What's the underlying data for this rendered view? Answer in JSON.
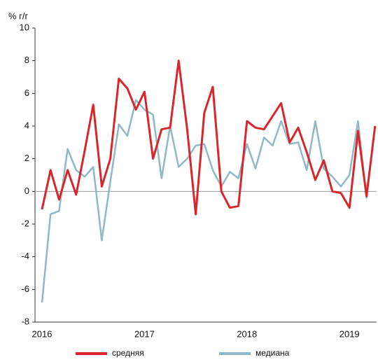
{
  "chart_data": {
    "type": "line",
    "ylabel": "% г/г",
    "categories": [
      "2016",
      null,
      null,
      null,
      null,
      null,
      null,
      null,
      null,
      null,
      null,
      null,
      "2017",
      null,
      null,
      null,
      null,
      null,
      null,
      null,
      null,
      null,
      null,
      null,
      "2018",
      null,
      null,
      null,
      null,
      null,
      null,
      null,
      null,
      null,
      null,
      null,
      "2019",
      null,
      null,
      null
    ],
    "series": [
      {
        "name": "средняя",
        "color": "#d9262b",
        "values": [
          -1.1,
          1.3,
          -0.5,
          1.3,
          -0.2,
          2.5,
          5.3,
          0.3,
          2.0,
          6.9,
          6.3,
          5.0,
          6.1,
          2.0,
          3.8,
          3.9,
          8.0,
          3.8,
          -1.4,
          4.8,
          6.4,
          0.0,
          -1.0,
          -0.9,
          4.3,
          3.9,
          3.8,
          4.6,
          5.4,
          3.0,
          3.9,
          2.4,
          0.7,
          1.9,
          0.0,
          -0.1,
          -1.0,
          3.7,
          -0.3,
          4.0
        ]
      },
      {
        "name": "медиана",
        "color": "#8fb9c9",
        "values": [
          -6.8,
          -1.4,
          -1.2,
          2.6,
          1.3,
          0.9,
          1.5,
          -3.0,
          0.6,
          4.1,
          3.4,
          5.6,
          5.0,
          4.7,
          0.8,
          4.0,
          1.5,
          2.0,
          2.8,
          2.9,
          1.3,
          0.3,
          1.2,
          0.8,
          2.9,
          1.4,
          3.3,
          2.8,
          4.3,
          2.9,
          3.0,
          1.3,
          4.3,
          1.4,
          0.9,
          0.3,
          1.0,
          4.3,
          -0.4,
          4.0
        ]
      }
    ],
    "ylim": [
      -8,
      10
    ],
    "yticks": [
      -8,
      -6,
      -4,
      -2,
      0,
      2,
      4,
      6,
      8,
      10
    ]
  }
}
